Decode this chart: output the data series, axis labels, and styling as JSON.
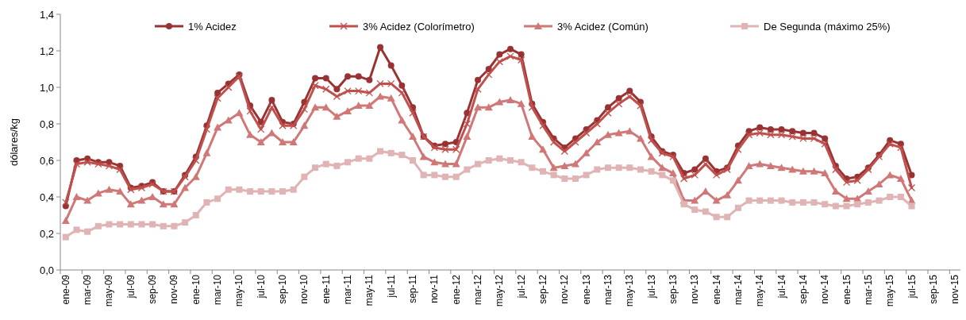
{
  "chart_data": {
    "type": "line",
    "ylabel": "dólares/kg",
    "categories": [
      "ene-09",
      null,
      "mar-09",
      null,
      "may-09",
      null,
      "jul-09",
      null,
      "sep-09",
      null,
      "nov-09",
      null,
      "ene-10",
      null,
      "mar-10",
      null,
      "may-10",
      null,
      "jul-10",
      null,
      "sep-10",
      null,
      "nov-10",
      null,
      "ene-11",
      null,
      "mar-11",
      null,
      "may-11",
      null,
      "jul-11",
      null,
      "sep-11",
      null,
      "nov-11",
      null,
      "ene-12",
      null,
      "mar-12",
      null,
      "may-12",
      null,
      "jul-12",
      null,
      "sep-12",
      null,
      "nov-12",
      null,
      "ene-13",
      null,
      "mar-13",
      null,
      "may-13",
      null,
      "jul-13",
      null,
      "sep-13",
      null,
      "nov-13",
      null,
      "ene-14",
      null,
      "mar-14",
      null,
      "may-14",
      null,
      "jul-14",
      null,
      "sep-14",
      null,
      "nov-14",
      null,
      "ene-15",
      null,
      "mar-15",
      null,
      "may-15",
      null,
      "jul-15",
      null,
      "sep-15",
      null,
      "nov-15"
    ],
    "ylim": [
      0,
      1.4
    ],
    "yticks": [
      {
        "value": 0,
        "label": "0,0"
      },
      {
        "value": 0.2,
        "label": "0,2"
      },
      {
        "value": 0.4,
        "label": "0,4"
      },
      {
        "value": 0.6,
        "label": "0,6"
      },
      {
        "value": 0.8,
        "label": "0,8"
      },
      {
        "value": 1.0,
        "label": "1,0"
      },
      {
        "value": 1.2,
        "label": "1,2"
      },
      {
        "value": 1.4,
        "label": "1,4"
      }
    ],
    "grid": false,
    "legend": "top",
    "line_style": "solid",
    "series": [
      {
        "name": "1% Acidez",
        "color": "#993333",
        "marker": "circle",
        "values": [
          0.35,
          0.6,
          0.61,
          0.59,
          0.59,
          0.57,
          0.45,
          0.46,
          0.48,
          0.43,
          0.43,
          0.52,
          0.62,
          0.79,
          0.97,
          1.02,
          1.07,
          0.9,
          0.81,
          0.93,
          0.81,
          0.8,
          0.92,
          1.05,
          1.05,
          0.99,
          1.06,
          1.06,
          1.04,
          1.22,
          1.12,
          1.01,
          0.89,
          0.73,
          0.68,
          0.69,
          0.7,
          0.86,
          1.04,
          1.1,
          1.18,
          1.21,
          1.18,
          0.91,
          0.81,
          0.72,
          0.67,
          0.72,
          0.77,
          0.82,
          0.89,
          0.94,
          0.98,
          0.92,
          0.73,
          0.65,
          0.63,
          0.53,
          0.55,
          0.61,
          0.54,
          0.56,
          0.68,
          0.76,
          0.78,
          0.77,
          0.77,
          0.76,
          0.75,
          0.75,
          0.72,
          0.57,
          0.5,
          0.51,
          0.56,
          0.63,
          0.71,
          0.69,
          0.52,
          null,
          null,
          null,
          null
        ]
      },
      {
        "name": "3% Acidez (Colorímetro)",
        "color": "#c0504d",
        "marker": "cross",
        "values": [
          0.37,
          0.58,
          0.59,
          0.58,
          0.57,
          0.55,
          0.44,
          0.45,
          0.47,
          0.43,
          0.43,
          0.51,
          0.6,
          0.77,
          0.94,
          1.0,
          1.06,
          0.87,
          0.77,
          0.89,
          0.79,
          0.79,
          0.88,
          1.01,
          0.99,
          0.95,
          0.98,
          0.98,
          0.97,
          1.02,
          1.02,
          0.97,
          0.86,
          0.73,
          0.67,
          0.66,
          0.66,
          0.8,
          0.99,
          1.07,
          1.14,
          1.17,
          1.15,
          0.89,
          0.79,
          0.7,
          0.65,
          0.7,
          0.75,
          0.8,
          0.86,
          0.91,
          0.95,
          0.9,
          0.71,
          0.64,
          0.62,
          0.5,
          0.52,
          0.58,
          0.52,
          0.55,
          0.66,
          0.74,
          0.75,
          0.74,
          0.74,
          0.73,
          0.72,
          0.72,
          0.69,
          0.55,
          0.48,
          0.49,
          0.55,
          0.62,
          0.69,
          0.67,
          0.45,
          null,
          null,
          null,
          null
        ]
      },
      {
        "name": "3% Acidez (Común)",
        "color": "#d07878",
        "marker": "triangle",
        "values": [
          0.27,
          0.4,
          0.38,
          0.42,
          0.44,
          0.43,
          0.36,
          0.38,
          0.4,
          0.36,
          0.36,
          0.45,
          0.51,
          0.64,
          0.78,
          0.82,
          0.86,
          0.74,
          0.7,
          0.75,
          0.7,
          0.7,
          0.79,
          0.89,
          0.89,
          0.84,
          0.87,
          0.9,
          0.9,
          0.95,
          0.94,
          0.82,
          0.73,
          0.62,
          0.59,
          0.58,
          0.58,
          0.73,
          0.89,
          0.89,
          0.92,
          0.93,
          0.91,
          0.73,
          0.66,
          0.56,
          0.57,
          0.58,
          0.64,
          0.7,
          0.74,
          0.75,
          0.76,
          0.72,
          0.62,
          0.56,
          0.53,
          0.38,
          0.38,
          0.43,
          0.38,
          0.41,
          0.49,
          0.57,
          0.58,
          0.57,
          0.56,
          0.55,
          0.54,
          0.54,
          0.53,
          0.43,
          0.39,
          0.39,
          0.43,
          0.47,
          0.52,
          0.5,
          0.38,
          null,
          null,
          null,
          null
        ]
      },
      {
        "name": "De Segunda (máximo 25%)",
        "color": "#e0b4b4",
        "marker": "square",
        "values": [
          0.18,
          0.22,
          0.21,
          0.24,
          0.25,
          0.25,
          0.25,
          0.25,
          0.25,
          0.24,
          0.24,
          0.26,
          0.3,
          0.37,
          0.39,
          0.44,
          0.44,
          0.43,
          0.43,
          0.43,
          0.43,
          0.44,
          0.51,
          0.56,
          0.58,
          0.57,
          0.59,
          0.61,
          0.61,
          0.65,
          0.64,
          0.63,
          0.6,
          0.52,
          0.52,
          0.51,
          0.51,
          0.55,
          0.58,
          0.6,
          0.61,
          0.6,
          0.59,
          0.56,
          0.54,
          0.52,
          0.5,
          0.5,
          0.52,
          0.55,
          0.56,
          0.56,
          0.56,
          0.55,
          0.54,
          0.52,
          0.49,
          0.36,
          0.33,
          0.32,
          0.29,
          0.29,
          0.34,
          0.38,
          0.38,
          0.38,
          0.38,
          0.37,
          0.37,
          0.37,
          0.36,
          0.35,
          0.35,
          0.36,
          0.37,
          0.38,
          0.4,
          0.4,
          0.35,
          null,
          null,
          null,
          null
        ]
      }
    ]
  }
}
